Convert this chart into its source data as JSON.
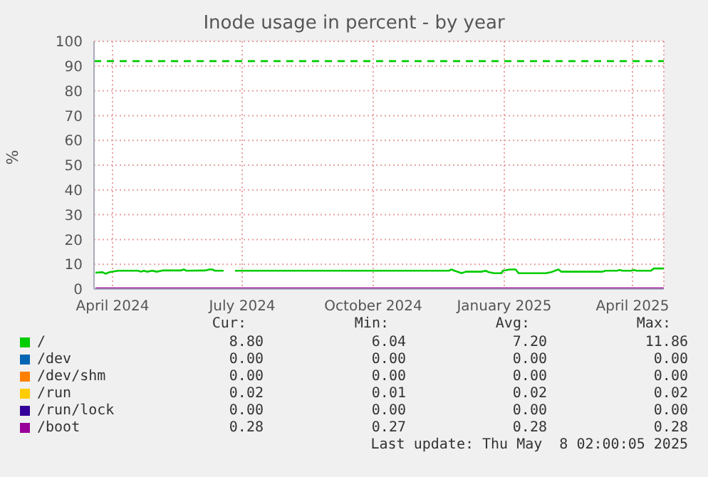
{
  "chart_data": {
    "type": "line",
    "title": "Inode usage in percent - by year",
    "ylabel": "%",
    "xlim": [
      "2024-03-19",
      "2025-04-23"
    ],
    "xticks": [
      {
        "value": "2024-04-01",
        "label": "April 2024"
      },
      {
        "value": "2024-07-01",
        "label": "July 2024"
      },
      {
        "value": "2024-10-01",
        "label": "October 2024"
      },
      {
        "value": "2025-01-01",
        "label": "January 2025"
      },
      {
        "value": "2025-04-01",
        "label": "April 2025"
      }
    ],
    "ylim": [
      0,
      100
    ],
    "yticks": [
      0,
      10,
      20,
      30,
      40,
      50,
      60,
      70,
      80,
      90,
      100
    ],
    "grid": true,
    "legend": "bottom",
    "marker": "none",
    "line_style": "solid",
    "ref_lines": [
      {
        "axis": "y",
        "value": 92,
        "color": "#00cc00",
        "line_style": "dashed"
      }
    ],
    "series": [
      {
        "name": "/",
        "color": "#00cc00",
        "x": [
          "2024-03-20",
          "2024-03-25",
          "2024-03-27",
          "2024-03-30",
          "2024-04-05",
          "2024-04-19",
          "2024-04-21",
          "2024-04-23",
          "2024-04-25",
          "2024-04-29",
          "2024-05-02",
          "2024-05-06",
          "2024-05-19",
          "2024-05-21",
          "2024-05-23",
          "2024-06-05",
          "2024-06-08",
          "2024-06-10",
          "2024-06-12",
          "2024-06-18",
          "2024-06-22",
          "2024-06-26",
          "2024-11-23",
          "2024-11-25",
          "2024-11-27",
          "2024-11-30",
          "2024-12-02",
          "2024-12-05",
          "2024-12-16",
          "2024-12-19",
          "2024-12-21",
          "2024-12-25",
          "2024-12-30",
          "2024-12-31",
          "2025-01-05",
          "2025-01-09",
          "2025-01-11",
          "2025-01-30",
          "2025-02-03",
          "2025-02-06",
          "2025-02-08",
          "2025-02-10",
          "2025-03-11",
          "2025-03-13",
          "2025-03-21",
          "2025-03-23",
          "2025-03-25",
          "2025-03-31",
          "2025-04-02",
          "2025-04-04",
          "2025-04-14",
          "2025-04-16",
          "2025-04-23"
        ],
        "values": [
          6.6,
          6.8,
          6.2,
          6.8,
          7.4,
          7.4,
          7.0,
          7.4,
          7.0,
          7.4,
          7.0,
          7.5,
          7.5,
          7.9,
          7.4,
          7.5,
          7.9,
          7.9,
          7.4,
          7.4,
          null,
          7.4,
          7.4,
          7.9,
          7.4,
          6.8,
          6.4,
          7.0,
          7.0,
          7.4,
          6.8,
          6.4,
          6.4,
          7.4,
          7.9,
          7.9,
          6.4,
          6.4,
          6.8,
          7.5,
          7.9,
          7.0,
          7.0,
          7.4,
          7.4,
          7.7,
          7.4,
          7.4,
          7.7,
          7.4,
          7.4,
          8.3,
          8.3
        ]
      },
      {
        "name": "/dev",
        "color": "#0066b3"
      },
      {
        "name": "/dev/shm",
        "color": "#ff8000"
      },
      {
        "name": "/run",
        "color": "#ffcc00"
      },
      {
        "name": "/run/lock",
        "color": "#330099"
      },
      {
        "name": "/boot",
        "color": "#990099",
        "x": [
          "2024-03-20",
          "2025-04-23"
        ],
        "values": [
          0.3,
          0.3
        ]
      }
    ],
    "annotations": [
      "Cur:",
      "Min:",
      "Avg:",
      "Max:",
      "8.80",
      "6.04",
      "7.20",
      "11.86",
      "0.00",
      "0.00",
      "0.00",
      "0.00",
      "0.00",
      "0.00",
      "0.00",
      "0.00",
      "0.02",
      "0.01",
      "0.02",
      "0.02",
      "0.00",
      "0.00",
      "0.00",
      "0.00",
      "0.28",
      "0.27",
      "0.28",
      "0.28",
      "Last update: Thu May  8 02:00:05 2025"
    ]
  }
}
